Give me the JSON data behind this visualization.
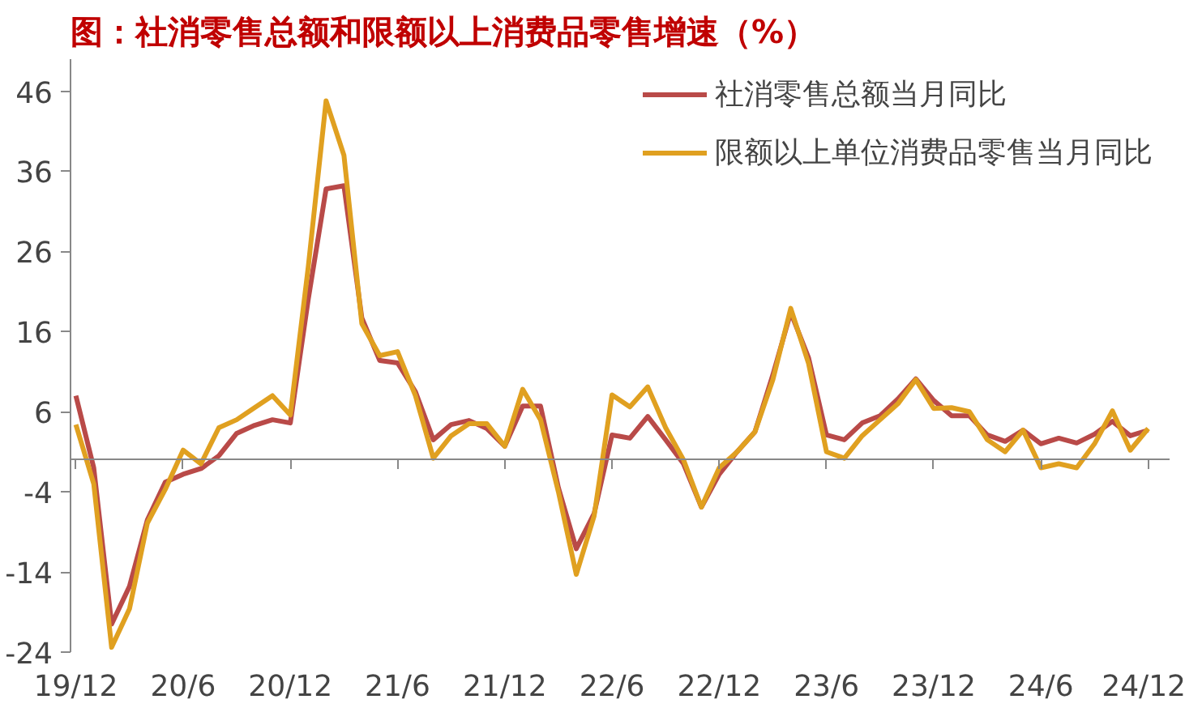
{
  "chart_data": {
    "type": "line",
    "title": "图：社消零售总额和限额以上消费品零售增速（%）",
    "categories": [
      "19/12",
      null,
      null,
      null,
      null,
      null,
      "20/6",
      null,
      null,
      null,
      null,
      null,
      "20/12",
      null,
      null,
      null,
      null,
      null,
      "21/6",
      null,
      null,
      null,
      null,
      null,
      "21/12",
      null,
      null,
      null,
      null,
      null,
      "22/6",
      null,
      null,
      null,
      null,
      null,
      "22/12",
      null,
      null,
      null,
      null,
      null,
      "23/6",
      null,
      null,
      null,
      null,
      null,
      "23/12",
      null,
      null,
      null,
      null,
      null,
      "24/6",
      null,
      null,
      null,
      null,
      null,
      "24/12"
    ],
    "series": [
      {
        "name": "社消零售总额当月同比",
        "color": "#b94a48",
        "values": [
          8.0,
          -1,
          -20.5,
          -15.8,
          -7.5,
          -2.8,
          -1.8,
          -1.1,
          0.5,
          3.3,
          4.3,
          5.0,
          4.6,
          20,
          33.8,
          34.2,
          17.7,
          12.4,
          12.1,
          8.5,
          2.5,
          4.4,
          4.9,
          3.9,
          1.7,
          6.7,
          6.7,
          -3.5,
          -11.1,
          -6.7,
          3.1,
          2.7,
          5.4,
          2.5,
          -0.5,
          -5.9,
          -1.8,
          1,
          3.5,
          10.6,
          18.4,
          12.7,
          3.1,
          2.5,
          4.6,
          5.5,
          7.6,
          10.1,
          7.4,
          5.5,
          5.5,
          3.1,
          2.3,
          3.7,
          2.0,
          2.7,
          2.1,
          3.2,
          4.8,
          3.0,
          3.7
        ]
      },
      {
        "name": "限额以上单位消费品零售当月同比",
        "color": "#e0a020",
        "values": [
          4.4,
          -3,
          -23.4,
          -18.6,
          -7.9,
          -3.7,
          1.2,
          -0.5,
          4,
          5,
          6.5,
          8,
          5.6,
          24,
          44.8,
          38,
          17,
          13,
          13.5,
          8,
          0.2,
          3,
          4.5,
          4.5,
          1.7,
          8.8,
          5,
          -4,
          -14.3,
          -7,
          8.1,
          6.6,
          9.1,
          4,
          0,
          -5.9,
          -1,
          1,
          3.5,
          10,
          18.9,
          12,
          1,
          0.2,
          3,
          5,
          7,
          10,
          6.4,
          6.5,
          6,
          2.5,
          1,
          3.7,
          -1,
          -0.5,
          -1,
          2,
          6.1,
          1.2,
          3.9
        ]
      }
    ],
    "ylim": [
      -24,
      50
    ],
    "yticks": [
      -24,
      -14,
      -4,
      6,
      16,
      26,
      36,
      46
    ],
    "grid": false,
    "legend": "top right",
    "marker": "none",
    "line_style": "solid"
  }
}
